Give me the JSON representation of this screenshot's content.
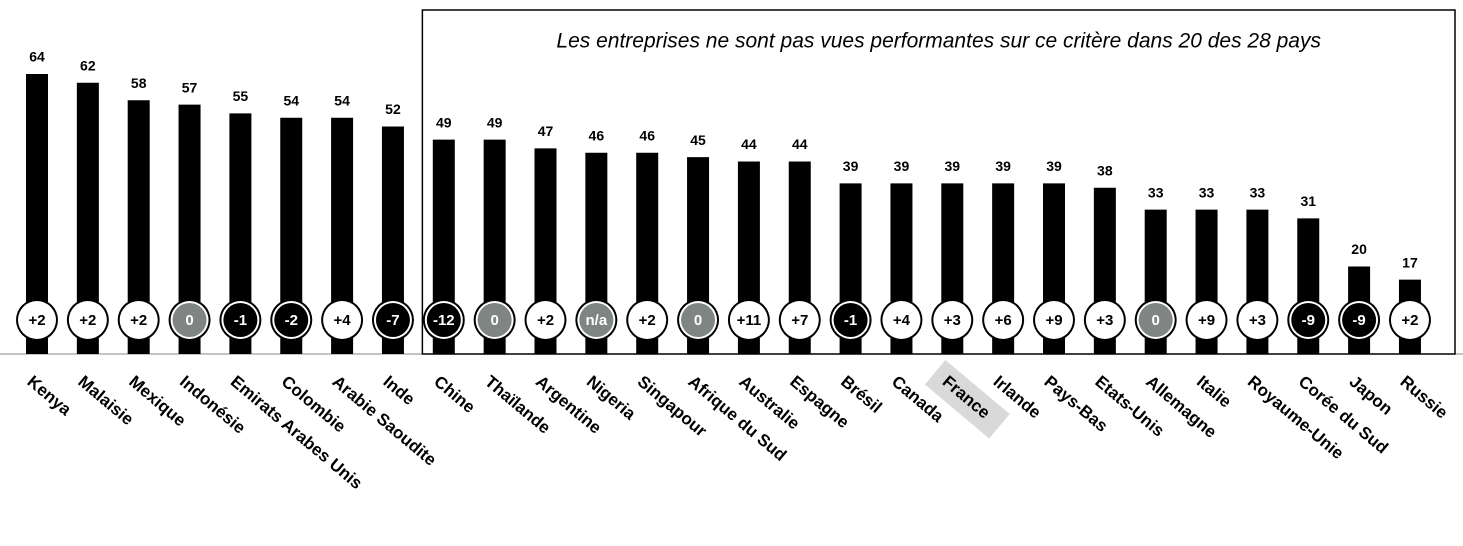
{
  "chart_data": {
    "type": "bar",
    "annotation": "Les entreprises ne sont pas vues performantes sur ce critère dans 20 des 28 pays",
    "categories": [
      "Kenya",
      "Malaisie",
      "Mexique",
      "Indonésie",
      "Emirats Arabes Unis",
      "Colombie",
      "Arabie Saoudite",
      "Inde",
      "Chine",
      "Thaïlande",
      "Argentine",
      "Nigeria",
      "Singapour",
      "Afrique du Sud",
      "Australie",
      "Espagne",
      "Brésil",
      "Canada",
      "France",
      "Irlande",
      "Pays-Bas",
      "Etats-Unis",
      "Allemagne",
      "Italie",
      "Royaume-Unie",
      "Corée du Sud",
      "Japon",
      "Russie"
    ],
    "values": [
      64,
      62,
      58,
      57,
      55,
      54,
      54,
      52,
      49,
      49,
      47,
      46,
      46,
      45,
      44,
      44,
      39,
      39,
      39,
      39,
      39,
      38,
      33,
      33,
      33,
      31,
      20,
      17
    ],
    "changes": [
      2,
      2,
      2,
      0,
      -1,
      -2,
      4,
      -7,
      -12,
      0,
      2,
      null,
      2,
      0,
      11,
      7,
      -1,
      4,
      3,
      6,
      9,
      3,
      0,
      9,
      3,
      -9,
      -9,
      2
    ],
    "change_labels": [
      "+2",
      "+2",
      "+2",
      "0",
      "-1",
      "-2",
      "+4",
      "-7",
      "-12",
      "0",
      "+2",
      "n/a",
      "+2",
      "0",
      "+11",
      "+7",
      "-1",
      "+4",
      "+3",
      "+6",
      "+9",
      "+3",
      "0",
      "+9",
      "+3",
      "-9",
      "-9",
      "+2"
    ],
    "color": "#000000",
    "ylim": [
      0,
      80
    ],
    "annotation_from": "Chine",
    "highlight": "France"
  }
}
